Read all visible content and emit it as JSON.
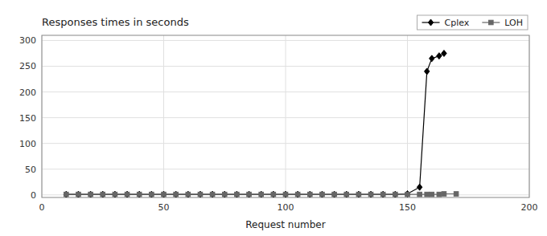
{
  "chart_data": {
    "type": "line",
    "title": "Responses times in seconds",
    "x_label": "Request number",
    "xlim": [
      0,
      200
    ],
    "xticks": [
      0,
      50,
      100,
      150,
      200
    ],
    "ylim": [
      -5,
      310
    ],
    "yticks": [
      0,
      50,
      100,
      150,
      200,
      250,
      300
    ],
    "grid": true,
    "legend": "upper right",
    "series": [
      {
        "name": "Cplex",
        "color": "#000000",
        "marker": "diamond",
        "line_style": "solid",
        "x": [
          10,
          15,
          20,
          25,
          30,
          35,
          40,
          45,
          50,
          55,
          60,
          65,
          70,
          75,
          80,
          85,
          90,
          95,
          100,
          105,
          110,
          115,
          120,
          125,
          130,
          135,
          140,
          145,
          150,
          155,
          158,
          160,
          163,
          165
        ],
        "values": [
          1,
          1,
          1,
          1,
          1,
          1,
          1,
          1,
          1,
          1,
          1,
          1,
          1,
          1,
          1,
          1,
          1,
          1,
          1,
          1,
          1,
          1,
          1,
          1,
          1,
          1,
          1,
          1,
          2,
          15,
          240,
          265,
          270,
          275
        ]
      },
      {
        "name": "LOH",
        "color": "#666666",
        "marker": "square",
        "line_style": "solid",
        "x": [
          10,
          15,
          20,
          25,
          30,
          35,
          40,
          45,
          50,
          55,
          60,
          65,
          70,
          75,
          80,
          85,
          90,
          95,
          100,
          105,
          110,
          115,
          120,
          125,
          130,
          135,
          140,
          145,
          150,
          155,
          158,
          160,
          163,
          165,
          170
        ],
        "values": [
          1,
          1,
          1,
          1,
          1,
          1,
          1,
          1,
          1,
          1,
          1,
          1,
          1,
          1,
          1,
          1,
          1,
          1,
          1,
          1,
          1,
          1,
          1,
          1,
          1,
          1,
          1,
          1,
          1,
          1,
          1,
          1,
          1,
          2,
          2
        ]
      }
    ]
  }
}
